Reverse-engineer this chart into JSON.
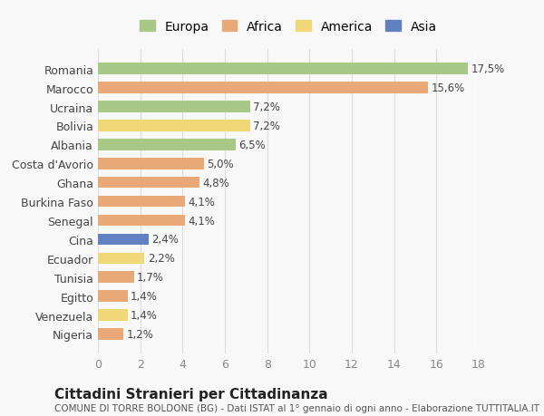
{
  "categories": [
    "Romania",
    "Marocco",
    "Ucraina",
    "Bolivia",
    "Albania",
    "Costa d'Avorio",
    "Ghana",
    "Burkina Faso",
    "Senegal",
    "Cina",
    "Ecuador",
    "Tunisia",
    "Egitto",
    "Venezuela",
    "Nigeria"
  ],
  "values": [
    17.5,
    15.6,
    7.2,
    7.2,
    6.5,
    5.0,
    4.8,
    4.1,
    4.1,
    2.4,
    2.2,
    1.7,
    1.4,
    1.4,
    1.2
  ],
  "labels": [
    "17,5%",
    "15,6%",
    "7,2%",
    "7,2%",
    "6,5%",
    "5,0%",
    "4,8%",
    "4,1%",
    "4,1%",
    "2,4%",
    "2,2%",
    "1,7%",
    "1,4%",
    "1,4%",
    "1,2%"
  ],
  "continents": [
    "Europa",
    "Africa",
    "Europa",
    "America",
    "Europa",
    "Africa",
    "Africa",
    "Africa",
    "Africa",
    "Asia",
    "America",
    "Africa",
    "Africa",
    "America",
    "Africa"
  ],
  "colors": {
    "Europa": "#a8c888",
    "Africa": "#e8a878",
    "America": "#f0d878",
    "Asia": "#6080c0"
  },
  "legend_order": [
    "Europa",
    "Africa",
    "America",
    "Asia"
  ],
  "title": "Cittadini Stranieri per Cittadinanza",
  "subtitle": "COMUNE DI TORRE BOLDONE (BG) - Dati ISTAT al 1° gennaio di ogni anno - Elaborazione TUTTITALIA.IT",
  "xlim": [
    0,
    18
  ],
  "xticks": [
    0,
    2,
    4,
    6,
    8,
    10,
    12,
    14,
    16,
    18
  ],
  "background_color": "#f8f8f8",
  "grid_color": "#dddddd"
}
